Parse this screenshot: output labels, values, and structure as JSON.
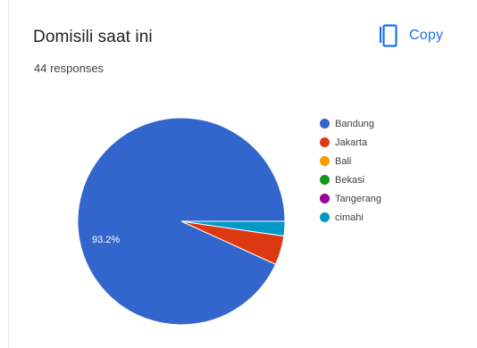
{
  "header": {
    "title": "Domisili saat ini",
    "responses": "44 responses",
    "copy_label": "Copy",
    "copy_icon": "copy-icon"
  },
  "colors": {
    "accent": "#1a73e8"
  },
  "chart_data": {
    "type": "pie",
    "categories": [
      "Bandung",
      "Jakarta",
      "Bali",
      "Bekasi",
      "Tangerang",
      "cimahi"
    ],
    "values": [
      41,
      2,
      0,
      0,
      0,
      1
    ],
    "colors": [
      "#3366cc",
      "#dc3912",
      "#ff9900",
      "#109618",
      "#990099",
      "#0099c6"
    ],
    "data_labels": [
      "93.2%",
      "",
      "",
      "",
      "",
      ""
    ],
    "legend_position": "right"
  }
}
